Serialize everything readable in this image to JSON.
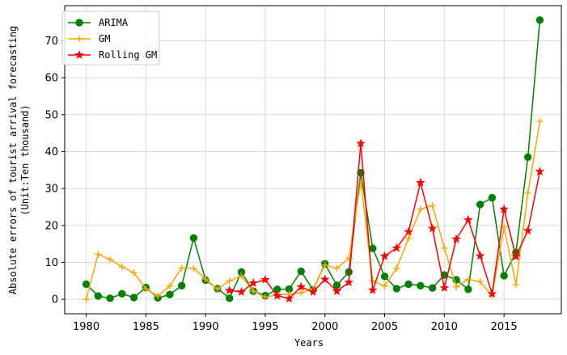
{
  "chart_data": {
    "type": "line",
    "title": "",
    "xlabel": "Years",
    "ylabel_lines": [
      "Absolute errors of tourist arrival forecasting",
      "(Unit:Ten thousand)"
    ],
    "xlim": [
      1978.2,
      2019.8
    ],
    "ylim": [
      -3.9,
      79.5
    ],
    "xticks": [
      1980,
      1985,
      1990,
      1995,
      2000,
      2005,
      2010,
      2015
    ],
    "yticks": [
      0,
      10,
      20,
      30,
      40,
      50,
      60,
      70
    ],
    "grid": true,
    "legend_position": "top-left",
    "x": [
      1980,
      1981,
      1982,
      1983,
      1984,
      1985,
      1986,
      1987,
      1988,
      1989,
      1990,
      1991,
      1992,
      1993,
      1994,
      1995,
      1996,
      1997,
      1998,
      1999,
      2000,
      2001,
      2002,
      2003,
      2004,
      2005,
      2006,
      2007,
      2008,
      2009,
      2010,
      2011,
      2012,
      2013,
      2014,
      2015,
      2016,
      2017,
      2018
    ],
    "series": [
      {
        "name": "ARIMA",
        "color": "#008000",
        "marker": "circle",
        "values": [
          4.1,
          0.9,
          0.3,
          1.5,
          0.5,
          3.2,
          0.4,
          1.3,
          3.7,
          16.6,
          5.2,
          2.9,
          0.3,
          7.4,
          2.2,
          1.0,
          2.7,
          2.8,
          7.6,
          2.6,
          9.6,
          3.8,
          7.4,
          34.3,
          13.8,
          6.2,
          2.9,
          4.1,
          3.7,
          3.1,
          6.6,
          5.3,
          2.7,
          25.7,
          27.5,
          6.4,
          12.7,
          38.5,
          75.6
        ]
      },
      {
        "name": "GM",
        "color": "#ffa500",
        "marker": "plus",
        "values": [
          0.0,
          12.2,
          10.8,
          8.8,
          7.2,
          2.8,
          0.9,
          3.6,
          8.5,
          8.4,
          5.5,
          2.8,
          5.0,
          6.3,
          2.2,
          0.6,
          1.2,
          1.4,
          1.8,
          2.8,
          9.3,
          8.4,
          11.2,
          31.8,
          5.0,
          3.6,
          8.4,
          16.5,
          24.4,
          25.4,
          13.9,
          3.4,
          5.4,
          4.8,
          1.0,
          19.6,
          4.0,
          28.8,
          48.2
        ]
      },
      {
        "name": "Rolling GM",
        "color": "#ff0000",
        "marker": "star",
        "values": [
          null,
          null,
          null,
          null,
          null,
          null,
          null,
          null,
          null,
          null,
          null,
          null,
          2.4,
          2.0,
          4.4,
          5.3,
          1.0,
          0.2,
          3.4,
          2.0,
          5.4,
          2.2,
          4.6,
          42.2,
          2.5,
          11.7,
          13.9,
          18.3,
          31.6,
          19.2,
          3.1,
          16.3,
          21.5,
          11.8,
          1.5,
          24.4,
          11.6,
          18.6,
          34.6
        ]
      }
    ]
  }
}
